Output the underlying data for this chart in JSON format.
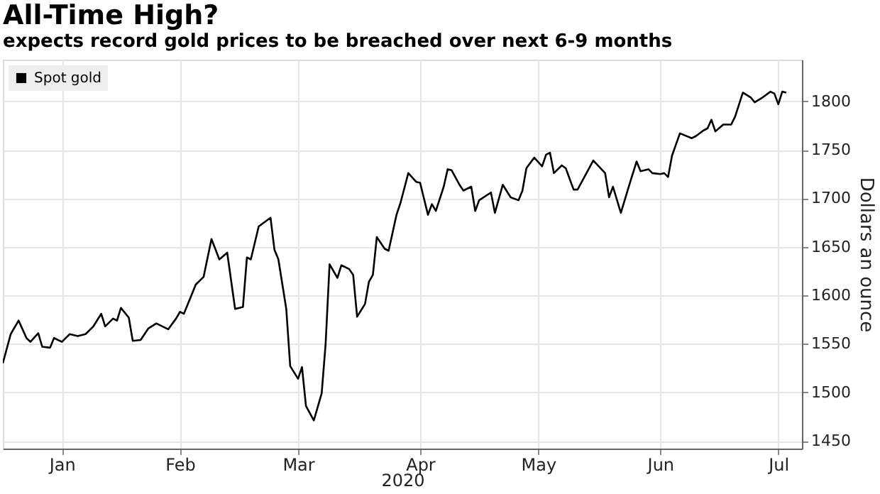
{
  "chart_data": {
    "type": "line",
    "title": "All-Time High?",
    "subtitle": "expects record gold prices to be breached over next 6-9 months",
    "xlabel": "2020",
    "ylabel": "Dollars an ounce",
    "x": [
      "2020-01-01",
      "2020-01-03",
      "2020-01-05",
      "2020-01-07",
      "2020-01-08",
      "2020-01-10",
      "2020-01-11",
      "2020-01-13",
      "2020-01-14",
      "2020-01-16",
      "2020-01-18",
      "2020-01-20",
      "2020-01-22",
      "2020-01-24",
      "2020-01-26",
      "2020-01-27",
      "2020-01-29",
      "2020-01-30",
      "2020-01-31",
      "2020-02-02",
      "2020-02-03",
      "2020-02-05",
      "2020-02-07",
      "2020-02-09",
      "2020-02-10",
      "2020-02-12",
      "2020-02-14",
      "2020-02-15",
      "2020-02-16",
      "2020-02-18",
      "2020-02-19",
      "2020-02-21",
      "2020-02-23",
      "2020-02-25",
      "2020-02-27",
      "2020-02-29",
      "2020-03-02",
      "2020-03-03",
      "2020-03-04",
      "2020-03-06",
      "2020-03-09",
      "2020-03-10",
      "2020-03-11",
      "2020-03-13",
      "2020-03-14",
      "2020-03-16",
      "2020-03-17",
      "2020-03-18",
      "2020-03-20",
      "2020-03-22",
      "2020-03-23",
      "2020-03-24",
      "2020-03-26",
      "2020-03-27",
      "2020-03-29",
      "2020-03-30",
      "2020-03-31",
      "2020-04-02",
      "2020-04-03",
      "2020-04-04",
      "2020-04-05",
      "2020-04-07",
      "2020-04-08",
      "2020-04-10",
      "2020-04-11",
      "2020-04-13",
      "2020-04-15",
      "2020-04-16",
      "2020-04-18",
      "2020-04-19",
      "2020-04-20",
      "2020-04-22",
      "2020-04-23",
      "2020-04-24",
      "2020-04-26",
      "2020-04-27",
      "2020-04-29",
      "2020-04-30",
      "2020-05-01",
      "2020-05-04",
      "2020-05-05",
      "2020-05-07",
      "2020-05-09",
      "2020-05-11",
      "2020-05-12",
      "2020-05-13",
      "2020-05-15",
      "2020-05-17",
      "2020-05-18",
      "2020-05-19",
      "2020-05-20",
      "2020-05-22",
      "2020-05-23",
      "2020-05-25",
      "2020-05-26",
      "2020-05-30",
      "2020-06-02",
      "2020-06-03",
      "2020-06-04",
      "2020-06-06",
      "2020-06-08",
      "2020-06-10",
      "2020-06-11",
      "2020-06-13",
      "2020-06-14",
      "2020-06-16",
      "2020-06-17",
      "2020-06-18",
      "2020-06-19",
      "2020-06-21",
      "2020-06-24",
      "2020-06-25",
      "2020-06-27",
      "2020-06-28",
      "2020-06-29",
      "2020-06-30",
      "2020-07-02",
      "2020-07-04",
      "2020-07-05",
      "2020-07-07",
      "2020-07-09",
      "2020-07-10",
      "2020-07-12",
      "2020-07-14",
      "2020-07-15",
      "2020-07-16",
      "2020-07-17",
      "2020-07-18"
    ],
    "series": [
      {
        "name": "Spot gold",
        "color": "#000000",
        "values": [
          1530,
          1560,
          1574,
          1556,
          1552,
          1561,
          1547,
          1546,
          1556,
          1552,
          1560,
          1558,
          1560,
          1568,
          1581,
          1568,
          1576,
          1574,
          1587,
          1577,
          1553,
          1554,
          1566,
          1571,
          1569,
          1565,
          1576,
          1583,
          1581,
          1601,
          1611,
          1619,
          1658,
          1637,
          1644,
          1586,
          1588,
          1639,
          1637,
          1671,
          1680,
          1647,
          1637,
          1586,
          1527,
          1514,
          1526,
          1486,
          1471,
          1499,
          1550,
          1632,
          1618,
          1631,
          1627,
          1621,
          1578,
          1591,
          1614,
          1621,
          1660,
          1648,
          1646,
          1683,
          1695,
          1726,
          1717,
          1716,
          1683,
          1694,
          1687,
          1712,
          1730,
          1729,
          1714,
          1708,
          1712,
          1687,
          1698,
          1706,
          1685,
          1714,
          1701,
          1698,
          1708,
          1731,
          1742,
          1733,
          1745,
          1747,
          1726,
          1734,
          1731,
          1709,
          1709,
          1739,
          1726,
          1701,
          1712,
          1685,
          1712,
          1738,
          1728,
          1730,
          1726,
          1725,
          1726,
          1722,
          1744,
          1767,
          1762,
          1764,
          1770,
          1772,
          1781,
          1769,
          1776,
          1776,
          1784,
          1809,
          1804,
          1799,
          1804,
          1810,
          1808,
          1797,
          1810,
          1809
        ]
      }
    ],
    "xlim": [
      "2020-01-01",
      "2020-07-22"
    ],
    "xticks": [
      {
        "value": "2020-01-16",
        "label": "Jan"
      },
      {
        "value": "2020-02-15",
        "label": "Feb"
      },
      {
        "value": "2020-03-16",
        "label": "Mar"
      },
      {
        "value": "2020-04-16",
        "label": "Apr"
      },
      {
        "value": "2020-05-16",
        "label": "May"
      },
      {
        "value": "2020-06-16",
        "label": "Jun"
      },
      {
        "value": "2020-07-16",
        "label": "Jul"
      }
    ],
    "ylim": [
      1442,
      1843
    ],
    "yticks": [
      1450,
      1500,
      1550,
      1600,
      1650,
      1700,
      1750,
      1800
    ],
    "grid": true,
    "legend": "top left",
    "marker": "none",
    "line_style": "solid"
  }
}
